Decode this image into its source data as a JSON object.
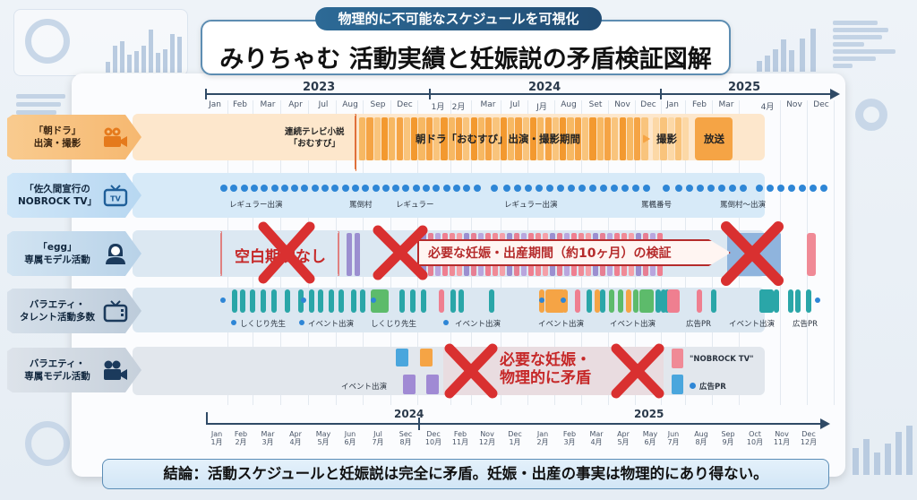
{
  "header": {
    "subtitle": "物理的に不可能なスケジュールを可視化",
    "title": "みりちゃむ 活動実績と妊娠説の矛盾検証図解"
  },
  "top_axis": {
    "years": [
      "2023",
      "2024",
      "2025"
    ],
    "months": [
      "Jan",
      "Feb",
      "Mar",
      "Apr",
      "Jul",
      "Aug",
      "Sep",
      "Dec",
      "1月",
      "2月",
      "Mar",
      "Jul",
      "J月",
      "Aug",
      "Set",
      "Nov",
      "Dec",
      "Jan",
      "Feb",
      "Mar",
      "4月",
      "Nov",
      "Dec"
    ]
  },
  "rows": [
    {
      "label": "「朝ドラ」\n出演・撮影",
      "icon": "video-camera-icon",
      "color": "#f7b96b",
      "annotations": {
        "pre": "連続テレビ小説\n「おむすび」",
        "main": "朝ドラ「おむすび」出演・撮影期間",
        "shoot": "撮影",
        "broadcast": "放送"
      }
    },
    {
      "label": "「佐久間宣行の\nNOBROCK TV」",
      "icon": "tv-icon",
      "color": "#d4e8f7",
      "annotations": [
        "レギュラー出演",
        "罵倒村",
        "レギュラー",
        "レギュラー出演",
        "罵楓番号",
        "罵倒村〜出演"
      ]
    },
    {
      "label": "「egg」\n専属モデル活動",
      "icon": "person-icon",
      "color": "#cfe0ee",
      "annotations": {
        "no_gap": "空白期間なし",
        "banner": "必要な妊娠・出産期間（約10ヶ月）の検証"
      }
    },
    {
      "label": "バラエティ・\nタレント活動多数",
      "icon": "tv-icon",
      "color": "#d6e2ee",
      "annotations": [
        "しくじり先生",
        "イベント出演",
        "しくじり先生",
        "イベント出演",
        "イベント出演",
        "イベント出演",
        "広告PR",
        "イベント出演",
        "広告PR"
      ]
    },
    {
      "label": "バラエティ・\n専属モデル活動",
      "icon": "video-camera-icon",
      "color": "#dde3ea",
      "annotations": {
        "event": "イベント出演",
        "contradiction": "必要な妊娠・\n物理的に矛盾",
        "legend_nobrock": "\"NOBROCK TV\"",
        "legend_ad": "広告PR"
      }
    }
  ],
  "bottom_axis": {
    "years": [
      "2024",
      "2025"
    ],
    "months": [
      "Jan\n1月",
      "Feb\n2月",
      "Mar\n3月",
      "Apr\n4月",
      "May\n5月",
      "Jun\n6月",
      "Jul\n7月",
      "Sec\n8月",
      "Dec\n10月",
      "Feb\n11月",
      "Nov\n12月",
      "Dec\n1月",
      "Jan\n2月",
      "Feb\n3月",
      "Mar\n4月",
      "Apr\n5月",
      "May\n6月",
      "Jun\n7月",
      "Aug\n8月",
      "Sep\n9月",
      "Oct\n10月",
      "Nov\n11月",
      "Dec\n12月"
    ]
  },
  "conclusion": "結論：活動スケジュールと妊娠説は完全に矛盾。妊娠・出産の事実は物理的にあり得ない。",
  "colors": {
    "accent_blue": "#2f4a66",
    "orange": "#f5a445",
    "red_x": "#d93030",
    "teal": "#2aa6a8",
    "purple": "#9b8fd0",
    "pink": "#ef7f90"
  }
}
